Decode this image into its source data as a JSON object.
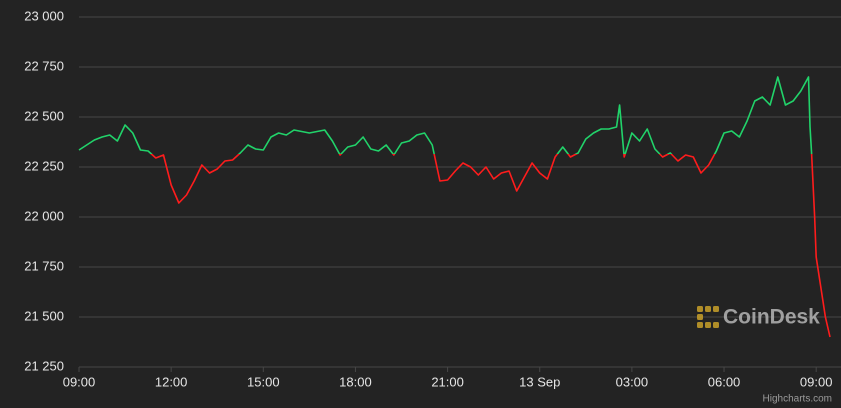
{
  "chart_data": {
    "type": "line",
    "x": [
      0,
      0.25,
      0.5,
      0.75,
      1,
      1.25,
      1.5,
      1.75,
      2,
      2.25,
      2.5,
      2.75,
      3,
      3.25,
      3.5,
      3.75,
      4,
      4.25,
      4.5,
      4.75,
      5,
      5.25,
      5.5,
      5.75,
      6,
      6.25,
      6.5,
      6.75,
      7,
      7.5,
      8,
      8.25,
      8.5,
      8.75,
      9,
      9.25,
      9.5,
      9.75,
      10,
      10.25,
      10.5,
      10.75,
      11,
      11.25,
      11.5,
      11.75,
      12,
      12.25,
      12.5,
      12.75,
      13,
      13.25,
      13.5,
      13.75,
      14,
      14.25,
      14.5,
      14.75,
      15,
      15.25,
      15.5,
      15.75,
      16,
      16.25,
      16.5,
      16.75,
      17,
      17.25,
      17.5,
      17.6,
      17.75,
      18,
      18.25,
      18.5,
      18.75,
      19,
      19.25,
      19.5,
      19.75,
      20,
      20.25,
      20.5,
      20.75,
      21,
      21.25,
      21.5,
      21.75,
      22,
      22.25,
      22.5,
      22.75,
      23,
      23.25,
      23.5,
      23.75,
      23.8,
      23.85,
      23.95,
      24,
      24.2,
      24.3,
      24.45
    ],
    "series": [
      {
        "values": [
          22335,
          22360,
          22385,
          22400,
          22410,
          22380,
          22460,
          22420,
          22335,
          22330,
          22295,
          22310,
          22160,
          22070,
          22110,
          22180,
          22260,
          22220,
          22240,
          22280,
          22285,
          22320,
          22360,
          22340,
          22335,
          22400,
          22420,
          22410,
          22435,
          22420,
          22435,
          22380,
          22310,
          22350,
          22360,
          22400,
          22340,
          22330,
          22360,
          22310,
          22370,
          22380,
          22410,
          22420,
          22360,
          22180,
          22185,
          22230,
          22270,
          22250,
          22210,
          22250,
          22190,
          22220,
          22230,
          22130,
          22200,
          22270,
          22220,
          22190,
          22300,
          22350,
          22300,
          22320,
          22390,
          22420,
          22440,
          22440,
          22450,
          22560,
          22300,
          22420,
          22380,
          22440,
          22340,
          22300,
          22320,
          22280,
          22310,
          22300,
          22220,
          22260,
          22330,
          22420,
          22430,
          22400,
          22480,
          22580,
          22600,
          22560,
          22700,
          22560,
          22580,
          22630,
          22700,
          22450,
          22320,
          22000,
          21800,
          21600,
          21500,
          21400
        ],
        "color_above": "#21d36a",
        "color_below": "#ff1c1c",
        "threshold": 22315
      }
    ],
    "xlim": [
      0,
      24.45
    ],
    "xticks": [
      {
        "value": 0,
        "label": "09:00"
      },
      {
        "value": 3,
        "label": "12:00"
      },
      {
        "value": 6,
        "label": "15:00"
      },
      {
        "value": 9,
        "label": "18:00"
      },
      {
        "value": 12,
        "label": "21:00"
      },
      {
        "value": 15,
        "label": "13 Sep"
      },
      {
        "value": 18,
        "label": "03:00"
      },
      {
        "value": 21,
        "label": "06:00"
      },
      {
        "value": 24,
        "label": "09:00"
      }
    ],
    "ylim": [
      21250,
      23000
    ],
    "yticks": [
      {
        "value": 21250,
        "label": "21 250"
      },
      {
        "value": 21500,
        "label": "21 500"
      },
      {
        "value": 21750,
        "label": "21 750"
      },
      {
        "value": 22000,
        "label": "22 000"
      },
      {
        "value": 22250,
        "label": "22 250"
      },
      {
        "value": 22500,
        "label": "22 500"
      },
      {
        "value": 22750,
        "label": "22 750"
      },
      {
        "value": 23000,
        "label": "23 000"
      }
    ],
    "grid": true,
    "watermark": "CoinDesk",
    "credits": "Highcharts.com"
  }
}
